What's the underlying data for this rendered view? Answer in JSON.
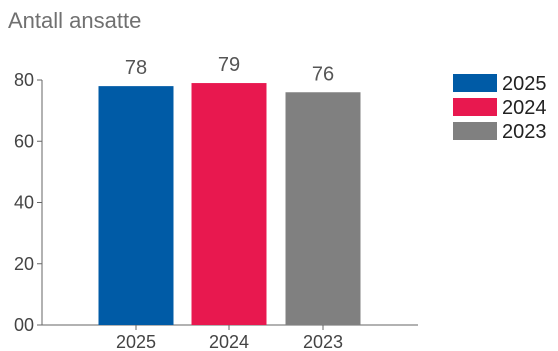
{
  "chart_data": {
    "type": "bar",
    "title": "Antall ansatte",
    "categories": [
      "2025",
      "2024",
      "2023"
    ],
    "values": [
      78,
      79,
      76
    ],
    "colors": [
      "#005ba6",
      "#e8184f",
      "#808080"
    ],
    "y_ticks": [
      "00",
      "20",
      "40",
      "60",
      "80"
    ],
    "ylim": [
      0,
      80
    ],
    "grid": false,
    "legend": {
      "position": "right",
      "entries": [
        "2025",
        "2024",
        "2023"
      ]
    }
  }
}
